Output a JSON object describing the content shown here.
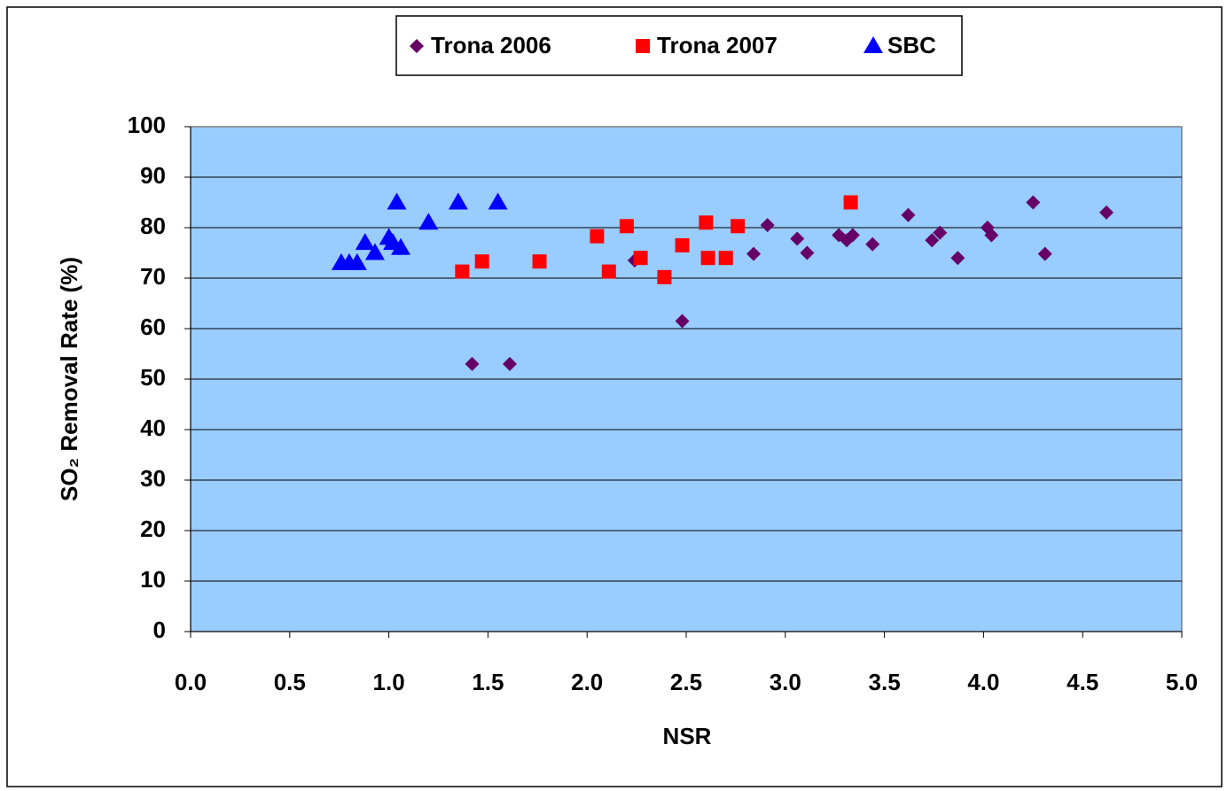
{
  "chart_data": {
    "type": "scatter",
    "xlabel": "NSR",
    "ylabel": "SO₂ Removal Rate (%)",
    "xlim": [
      0,
      5
    ],
    "ylim": [
      0,
      100
    ],
    "xticks": [
      {
        "value": 0,
        "label": "0.0"
      },
      0.5,
      {
        "value": 1,
        "label": "1.0"
      },
      1.5,
      {
        "value": 2,
        "label": "2.0"
      },
      2.5,
      {
        "value": 3,
        "label": "3.0"
      },
      3.5,
      {
        "value": 4,
        "label": "4.0"
      },
      4.5,
      {
        "value": 5,
        "label": "5.0"
      }
    ],
    "yticks": [
      0,
      10,
      20,
      30,
      40,
      50,
      60,
      70,
      80,
      90,
      100
    ],
    "grid": true,
    "legend": "top",
    "series": [
      {
        "name": "Trona 2006",
        "color": "#660066",
        "marker": "diamond",
        "x": [
          1.42,
          1.61,
          2.24,
          2.48,
          2.84,
          2.91,
          3.06,
          3.11,
          3.27,
          3.31,
          3.34,
          3.44,
          3.62,
          3.74,
          3.78,
          3.87,
          4.02,
          4.04,
          4.25,
          4.31,
          4.62
        ],
        "values": [
          53,
          53,
          73.5,
          61.5,
          74.8,
          80.5,
          77.8,
          75,
          78.5,
          77.5,
          78.5,
          76.7,
          82.5,
          77.5,
          79,
          74,
          80,
          78.5,
          85,
          74.8,
          83
        ]
      },
      {
        "name": "Trona 2007",
        "color": "#ff0000",
        "marker": "square",
        "x": [
          1.37,
          1.47,
          1.76,
          2.05,
          2.11,
          2.2,
          2.27,
          2.39,
          2.48,
          2.6,
          2.61,
          2.7,
          2.76,
          3.33
        ],
        "values": [
          71.3,
          73.3,
          73.3,
          78.3,
          71.3,
          80.3,
          74,
          70.2,
          76.5,
          81,
          74,
          74,
          80.3,
          85
        ]
      },
      {
        "name": "SBC",
        "color": "#0000ff",
        "marker": "triangle",
        "x": [
          0.76,
          0.8,
          0.84,
          0.88,
          0.93,
          1.0,
          1.02,
          1.04,
          1.06,
          1.2,
          1.35,
          1.55
        ],
        "values": [
          73,
          73,
          73,
          77,
          75,
          78,
          77,
          85,
          76,
          81,
          85,
          85
        ]
      }
    ]
  }
}
